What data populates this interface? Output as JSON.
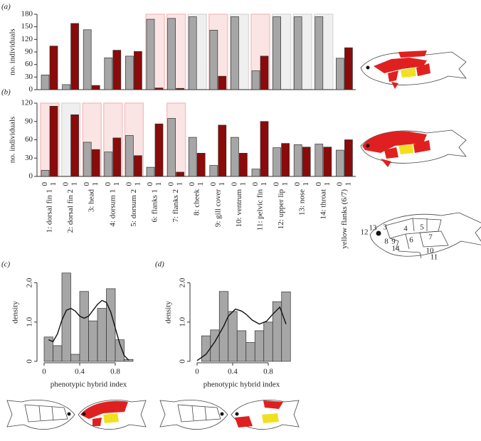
{
  "chart_data": [
    {
      "type": "bar",
      "label": "(a)",
      "ylabel": "no. individuals",
      "series": [
        {
          "name": "0",
          "color": "#a6a6a6",
          "values": [
            35,
            12,
            143,
            76,
            80,
            168,
            170,
            174,
            142,
            174,
            45,
            174,
            174,
            174,
            75
          ]
        },
        {
          "name": "1",
          "color": "#8b0a0a",
          "values": [
            104,
            158,
            10,
            94,
            91,
            4,
            3,
            0,
            32,
            0,
            80,
            0,
            0,
            0,
            100
          ]
        }
      ],
      "highlight": [
        null,
        null,
        null,
        null,
        null,
        "#f4c4c4",
        "#f4c4c4",
        "#dcdcdc",
        "#f4c4c4",
        "#dcdcdc",
        "#f4c4c4",
        "#dcdcdc",
        "#dcdcdc",
        "#dcdcdc",
        null
      ],
      "ylim": [
        0,
        180
      ],
      "yticks": [
        0,
        30,
        60,
        90,
        120,
        150,
        180
      ]
    },
    {
      "type": "bar",
      "label": "(b)",
      "ylabel": "no. individuals",
      "categories": [
        "1: dorsal fin 1",
        "2: dorsal fin 2",
        "3: head",
        "4: dorsum 1",
        "5: dorsum 2",
        "6: flanks 1",
        "7: flanks 2",
        "8: cheek",
        "9: gill cover",
        "10: ventrum",
        "11: pelvic fin",
        "12: upper lip",
        "13: nose",
        "14: throat",
        "yellow flanks (6/7)"
      ],
      "series": [
        {
          "name": "0",
          "color": "#a6a6a6",
          "values": [
            10,
            0,
            56,
            40,
            67,
            15,
            95,
            64,
            18,
            64,
            12,
            47,
            52,
            53,
            43
          ]
        },
        {
          "name": "1",
          "color": "#8b0a0a",
          "values": [
            115,
            101,
            44,
            63,
            34,
            86,
            7,
            38,
            84,
            38,
            90,
            54,
            48,
            48,
            60
          ]
        }
      ],
      "highlight": [
        "#f4c4c4",
        "#dcdcdc",
        "#f4c4c4",
        "#f4c4c4",
        "#f4c4c4",
        null,
        "#f4c4c4",
        null,
        null,
        null,
        null,
        null,
        null,
        null,
        null
      ],
      "ylim": [
        0,
        120
      ],
      "yticks": [
        0,
        30,
        60,
        90,
        120
      ]
    },
    {
      "type": "histogram",
      "label": "(c)",
      "xlabel": "phenotypic hybrid index",
      "ylabel": "density",
      "bins": [
        0,
        0.1,
        0.2,
        0.3,
        0.4,
        0.5,
        0.6,
        0.7,
        0.8,
        0.9,
        1.0
      ],
      "counts": [
        0.62,
        0.4,
        2.25,
        0.18,
        1.78,
        1.03,
        1.35,
        1.85,
        0.55,
        0.05
      ],
      "color": "#a6a6a6",
      "curve": {
        "x": [
          0.05,
          0.1,
          0.15,
          0.2,
          0.25,
          0.3,
          0.35,
          0.4,
          0.45,
          0.5,
          0.55,
          0.6,
          0.65,
          0.7,
          0.75,
          0.8,
          0.85,
          0.9,
          0.95
        ],
        "y": [
          0.55,
          0.5,
          0.7,
          1.05,
          1.3,
          1.35,
          1.28,
          1.15,
          1.1,
          1.15,
          1.3,
          1.45,
          1.55,
          1.5,
          1.25,
          0.85,
          0.45,
          0.15,
          0.03
        ]
      },
      "xlim": [
        -0.08,
        1.08
      ],
      "ylim": [
        0,
        2.5
      ],
      "xticks": [
        0,
        0.4,
        0.8
      ],
      "yticks": [
        0,
        {
          "value": 1,
          "label": "1.0"
        },
        {
          "value": 2,
          "label": "2.0"
        }
      ]
    },
    {
      "type": "histogram",
      "label": "(d)",
      "xlabel": "phenotypic hybrid index",
      "ylabel": "density",
      "bins": [
        0.05,
        0.15,
        0.25,
        0.35,
        0.45,
        0.55,
        0.65,
        0.75,
        0.85,
        0.95,
        1.05
      ],
      "counts": [
        0.65,
        0.8,
        1.78,
        1.27,
        0.78,
        0.48,
        0.78,
        1.0,
        1.52,
        1.77
      ],
      "color": "#a6a6a6",
      "curve": {
        "x": [
          0,
          0.1,
          0.2,
          0.3,
          0.35,
          0.43,
          0.5,
          0.55,
          0.62,
          0.7,
          0.78,
          0.85,
          0.93,
          1.0
        ],
        "y": [
          0.02,
          0.18,
          0.5,
          0.9,
          1.15,
          1.33,
          1.28,
          1.2,
          1.05,
          0.95,
          1.02,
          1.2,
          1.38,
          0.95
        ]
      },
      "xlim": [
        -0.08,
        1.08
      ],
      "ylim": [
        0,
        2.5
      ],
      "xticks": [
        0,
        0.4,
        0.8
      ],
      "yticks": [
        0,
        {
          "value": 1,
          "label": "1.0"
        },
        {
          "value": 2,
          "label": "2.0"
        }
      ]
    }
  ],
  "fish_region_labels": [
    "12",
    "13",
    "3",
    "4",
    "5",
    "6",
    "7",
    "8",
    "9",
    "14",
    "10",
    "11"
  ]
}
